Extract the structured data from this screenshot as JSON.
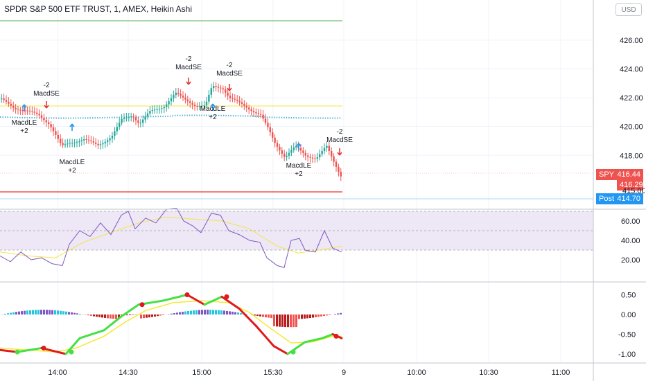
{
  "header": {
    "title": "SPDR S&P 500 ETF TRUST, 1, AMEX, Heikin Ashi",
    "currency": "USD"
  },
  "price_axis": {
    "ticks": [
      "426.00",
      "424.00",
      "422.00",
      "420.00",
      "418.00"
    ]
  },
  "price_labels": {
    "symbol": "SPY",
    "last": "416.44",
    "close": "416.29",
    "hidden_tick": "415.00",
    "post_label": "Post",
    "post_value": "414.70"
  },
  "rsi_axis": {
    "ticks": [
      "60.00",
      "40.00",
      "20.00"
    ]
  },
  "macd_axis": {
    "ticks": [
      "0.50",
      "0.00",
      "-0.50",
      "-1.00"
    ]
  },
  "time_axis": {
    "ticks": [
      "14:00",
      "14:30",
      "15:00",
      "15:30",
      "9",
      "10:00",
      "10:30",
      "11:00"
    ]
  },
  "signals": [
    {
      "type": "long",
      "line1": "MacdLE",
      "line2": "+2"
    },
    {
      "type": "short",
      "line1": "-2",
      "line2": "MacdSE"
    },
    {
      "type": "long",
      "line1": "MacdLE",
      "line2": "+2"
    },
    {
      "type": "short",
      "line1": "-2",
      "line2": "MacdSE"
    },
    {
      "type": "long",
      "line1": "MacdLE",
      "line2": "+2"
    },
    {
      "type": "short",
      "line1": "-2",
      "line2": "MacdSE"
    },
    {
      "type": "long",
      "line1": "MacdLE",
      "line2": "+2"
    },
    {
      "type": "short",
      "line1": "-2",
      "line2": "MacdSE"
    }
  ],
  "colors": {
    "up": "#26a69a",
    "down": "#ef5350",
    "macd_up": "#44e044",
    "macd_down": "#e01a1a",
    "signal": "#f5e932",
    "rsi": "#7e57c2",
    "rsi_ma": "#f4e542",
    "blue": "#2962ff",
    "bg_band": "#ede7f6"
  }
}
